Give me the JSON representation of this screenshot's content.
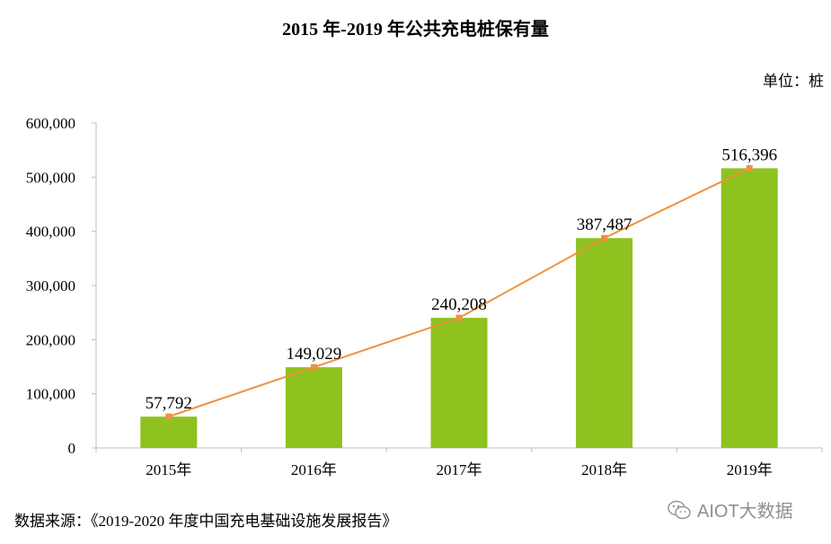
{
  "title": "2015 年-2019 年公共充电桩保有量",
  "unit_label": "单位：桩",
  "source": "数据来源：《2019-2020 年度中国充电基础设施发展报告》",
  "watermark": "AIOT大数据",
  "colors": {
    "bar": "#8dc21f",
    "line": "#f0913c",
    "axis": "#bfbfbf"
  },
  "chart_data": {
    "type": "bar",
    "title": "2015 年-2019 年公共充电桩保有量",
    "xlabel": "",
    "ylabel": "",
    "categories": [
      "2015年",
      "2016年",
      "2017年",
      "2018年",
      "2019年"
    ],
    "values": [
      57792,
      149029,
      240208,
      387487,
      516396
    ],
    "value_labels": [
      "57,792",
      "149,029",
      "240,208",
      "387,487",
      "516,396"
    ],
    "overlay_line": {
      "values": [
        57792,
        149029,
        240208,
        387487,
        516396
      ]
    },
    "ylim": [
      0,
      600000
    ],
    "yticks": [
      0,
      100000,
      200000,
      300000,
      400000,
      500000,
      600000
    ],
    "ytick_labels": [
      "0",
      "100,000",
      "200,000",
      "300,000",
      "400,000",
      "500,000",
      "600,000"
    ],
    "grid": false,
    "legend": "none"
  }
}
